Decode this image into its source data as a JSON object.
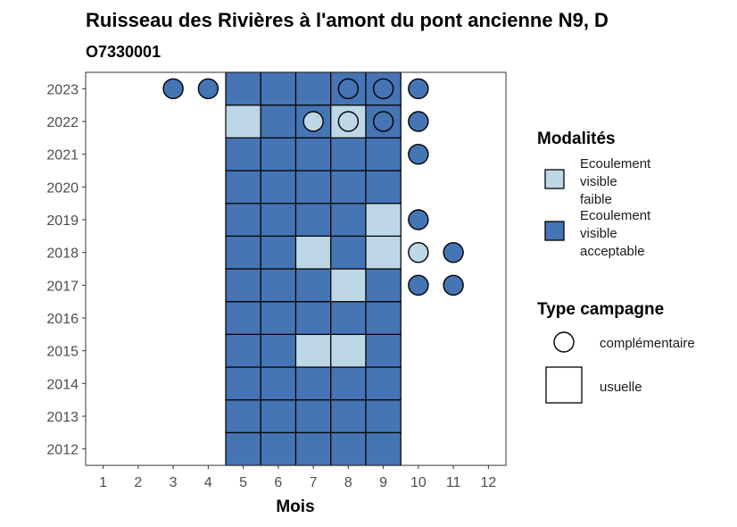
{
  "chart_data": {
    "type": "heatmap",
    "title": "Ruisseau des Rivières à l'amont du pont ancienne N9, D",
    "subtitle": "O7330001",
    "xlabel": "Mois",
    "ylabel": "",
    "x_ticks": [
      "1",
      "2",
      "3",
      "4",
      "5",
      "6",
      "7",
      "8",
      "9",
      "10",
      "11",
      "12"
    ],
    "y_ticks": [
      "2012",
      "2013",
      "2014",
      "2015",
      "2016",
      "2017",
      "2018",
      "2019",
      "2020",
      "2021",
      "2022",
      "2023"
    ],
    "xlim": [
      0.5,
      12.5
    ],
    "ylim": [
      2011.5,
      2023.5
    ],
    "grid": false,
    "colors": {
      "Ecoulement visible faible": "#bdd7e7",
      "Ecoulement visible acceptable": "#4575b4",
      "none": "#ffffff",
      "outline": "#000000"
    },
    "legend": {
      "placement": "right",
      "modalites": {
        "title": "Modalités",
        "items": [
          {
            "key": "Ecoulement visible faible",
            "lines": [
              "Ecoulement",
              "visible",
              "faible"
            ]
          },
          {
            "key": "Ecoulement visible acceptable",
            "lines": [
              "Ecoulement",
              "visible",
              "acceptable"
            ]
          }
        ]
      },
      "campagne": {
        "title": "Type campagne",
        "items": [
          {
            "key": "complémentaire",
            "label": "complémentaire",
            "shape": "circle"
          },
          {
            "key": "usuelle",
            "label": "usuelle",
            "shape": "square"
          }
        ]
      }
    },
    "observations": [
      {
        "year": 2012,
        "month": 5,
        "modalite": "Ecoulement visible acceptable",
        "campagne": "usuelle"
      },
      {
        "year": 2012,
        "month": 6,
        "modalite": "Ecoulement visible acceptable",
        "campagne": "usuelle"
      },
      {
        "year": 2012,
        "month": 7,
        "modalite": "Ecoulement visible acceptable",
        "campagne": "usuelle"
      },
      {
        "year": 2012,
        "month": 8,
        "modalite": "Ecoulement visible acceptable",
        "campagne": "usuelle"
      },
      {
        "year": 2012,
        "month": 9,
        "modalite": "Ecoulement visible acceptable",
        "campagne": "usuelle"
      },
      {
        "year": 2013,
        "month": 5,
        "modalite": "Ecoulement visible acceptable",
        "campagne": "usuelle"
      },
      {
        "year": 2013,
        "month": 6,
        "modalite": "Ecoulement visible acceptable",
        "campagne": "usuelle"
      },
      {
        "year": 2013,
        "month": 7,
        "modalite": "Ecoulement visible acceptable",
        "campagne": "usuelle"
      },
      {
        "year": 2013,
        "month": 8,
        "modalite": "Ecoulement visible acceptable",
        "campagne": "usuelle"
      },
      {
        "year": 2013,
        "month": 9,
        "modalite": "Ecoulement visible acceptable",
        "campagne": "usuelle"
      },
      {
        "year": 2014,
        "month": 5,
        "modalite": "Ecoulement visible acceptable",
        "campagne": "usuelle"
      },
      {
        "year": 2014,
        "month": 6,
        "modalite": "Ecoulement visible acceptable",
        "campagne": "usuelle"
      },
      {
        "year": 2014,
        "month": 7,
        "modalite": "Ecoulement visible acceptable",
        "campagne": "usuelle"
      },
      {
        "year": 2014,
        "month": 8,
        "modalite": "Ecoulement visible acceptable",
        "campagne": "usuelle"
      },
      {
        "year": 2014,
        "month": 9,
        "modalite": "Ecoulement visible acceptable",
        "campagne": "usuelle"
      },
      {
        "year": 2015,
        "month": 5,
        "modalite": "Ecoulement visible acceptable",
        "campagne": "usuelle"
      },
      {
        "year": 2015,
        "month": 6,
        "modalite": "Ecoulement visible acceptable",
        "campagne": "usuelle"
      },
      {
        "year": 2015,
        "month": 7,
        "modalite": "Ecoulement visible faible",
        "campagne": "usuelle"
      },
      {
        "year": 2015,
        "month": 8,
        "modalite": "Ecoulement visible faible",
        "campagne": "usuelle"
      },
      {
        "year": 2015,
        "month": 9,
        "modalite": "Ecoulement visible acceptable",
        "campagne": "usuelle"
      },
      {
        "year": 2016,
        "month": 5,
        "modalite": "Ecoulement visible acceptable",
        "campagne": "usuelle"
      },
      {
        "year": 2016,
        "month": 6,
        "modalite": "Ecoulement visible acceptable",
        "campagne": "usuelle"
      },
      {
        "year": 2016,
        "month": 7,
        "modalite": "Ecoulement visible acceptable",
        "campagne": "usuelle"
      },
      {
        "year": 2016,
        "month": 8,
        "modalite": "Ecoulement visible acceptable",
        "campagne": "usuelle"
      },
      {
        "year": 2016,
        "month": 9,
        "modalite": "Ecoulement visible acceptable",
        "campagne": "usuelle"
      },
      {
        "year": 2017,
        "month": 5,
        "modalite": "Ecoulement visible acceptable",
        "campagne": "usuelle"
      },
      {
        "year": 2017,
        "month": 6,
        "modalite": "Ecoulement visible acceptable",
        "campagne": "usuelle"
      },
      {
        "year": 2017,
        "month": 7,
        "modalite": "Ecoulement visible acceptable",
        "campagne": "usuelle"
      },
      {
        "year": 2017,
        "month": 8,
        "modalite": "Ecoulement visible faible",
        "campagne": "usuelle"
      },
      {
        "year": 2017,
        "month": 9,
        "modalite": "Ecoulement visible acceptable",
        "campagne": "usuelle"
      },
      {
        "year": 2017,
        "month": 10,
        "modalite": "Ecoulement visible acceptable",
        "campagne": "complémentaire"
      },
      {
        "year": 2017,
        "month": 11,
        "modalite": "Ecoulement visible acceptable",
        "campagne": "complémentaire"
      },
      {
        "year": 2018,
        "month": 5,
        "modalite": "Ecoulement visible acceptable",
        "campagne": "usuelle"
      },
      {
        "year": 2018,
        "month": 6,
        "modalite": "Ecoulement visible acceptable",
        "campagne": "usuelle"
      },
      {
        "year": 2018,
        "month": 7,
        "modalite": "Ecoulement visible faible",
        "campagne": "usuelle"
      },
      {
        "year": 2018,
        "month": 8,
        "modalite": "Ecoulement visible acceptable",
        "campagne": "usuelle"
      },
      {
        "year": 2018,
        "month": 9,
        "modalite": "Ecoulement visible faible",
        "campagne": "usuelle"
      },
      {
        "year": 2018,
        "month": 10,
        "modalite": "Ecoulement visible faible",
        "campagne": "complémentaire"
      },
      {
        "year": 2018,
        "month": 11,
        "modalite": "Ecoulement visible acceptable",
        "campagne": "complémentaire"
      },
      {
        "year": 2019,
        "month": 5,
        "modalite": "Ecoulement visible acceptable",
        "campagne": "usuelle"
      },
      {
        "year": 2019,
        "month": 6,
        "modalite": "Ecoulement visible acceptable",
        "campagne": "usuelle"
      },
      {
        "year": 2019,
        "month": 7,
        "modalite": "Ecoulement visible acceptable",
        "campagne": "usuelle"
      },
      {
        "year": 2019,
        "month": 8,
        "modalite": "Ecoulement visible acceptable",
        "campagne": "usuelle"
      },
      {
        "year": 2019,
        "month": 9,
        "modalite": "Ecoulement visible faible",
        "campagne": "usuelle"
      },
      {
        "year": 2019,
        "month": 10,
        "modalite": "Ecoulement visible acceptable",
        "campagne": "complémentaire"
      },
      {
        "year": 2020,
        "month": 5,
        "modalite": "Ecoulement visible acceptable",
        "campagne": "usuelle"
      },
      {
        "year": 2020,
        "month": 6,
        "modalite": "Ecoulement visible acceptable",
        "campagne": "usuelle"
      },
      {
        "year": 2020,
        "month": 7,
        "modalite": "Ecoulement visible acceptable",
        "campagne": "usuelle"
      },
      {
        "year": 2020,
        "month": 8,
        "modalite": "Ecoulement visible acceptable",
        "campagne": "usuelle"
      },
      {
        "year": 2020,
        "month": 9,
        "modalite": "Ecoulement visible acceptable",
        "campagne": "usuelle"
      },
      {
        "year": 2021,
        "month": 5,
        "modalite": "Ecoulement visible acceptable",
        "campagne": "usuelle"
      },
      {
        "year": 2021,
        "month": 6,
        "modalite": "Ecoulement visible acceptable",
        "campagne": "usuelle"
      },
      {
        "year": 2021,
        "month": 7,
        "modalite": "Ecoulement visible acceptable",
        "campagne": "usuelle"
      },
      {
        "year": 2021,
        "month": 8,
        "modalite": "Ecoulement visible acceptable",
        "campagne": "usuelle"
      },
      {
        "year": 2021,
        "month": 9,
        "modalite": "Ecoulement visible acceptable",
        "campagne": "usuelle"
      },
      {
        "year": 2021,
        "month": 10,
        "modalite": "Ecoulement visible acceptable",
        "campagne": "complémentaire"
      },
      {
        "year": 2022,
        "month": 5,
        "modalite": "Ecoulement visible faible",
        "campagne": "usuelle"
      },
      {
        "year": 2022,
        "month": 6,
        "modalite": "Ecoulement visible acceptable",
        "campagne": "usuelle"
      },
      {
        "year": 2022,
        "month": 7,
        "modalite": "Ecoulement visible acceptable",
        "campagne": "usuelle"
      },
      {
        "year": 2022,
        "month": 7,
        "modalite": "Ecoulement visible faible",
        "campagne": "complémentaire"
      },
      {
        "year": 2022,
        "month": 8,
        "modalite": "Ecoulement visible faible",
        "campagne": "usuelle"
      },
      {
        "year": 2022,
        "month": 8,
        "modalite": "Ecoulement visible faible",
        "campagne": "complémentaire"
      },
      {
        "year": 2022,
        "month": 9,
        "modalite": "Ecoulement visible acceptable",
        "campagne": "usuelle"
      },
      {
        "year": 2022,
        "month": 9,
        "modalite": "Ecoulement visible acceptable",
        "campagne": "complémentaire"
      },
      {
        "year": 2022,
        "month": 10,
        "modalite": "Ecoulement visible acceptable",
        "campagne": "complémentaire"
      },
      {
        "year": 2023,
        "month": 3,
        "modalite": "Ecoulement visible acceptable",
        "campagne": "complémentaire"
      },
      {
        "year": 2023,
        "month": 4,
        "modalite": "Ecoulement visible acceptable",
        "campagne": "complémentaire"
      },
      {
        "year": 2023,
        "month": 5,
        "modalite": "Ecoulement visible acceptable",
        "campagne": "usuelle"
      },
      {
        "year": 2023,
        "month": 6,
        "modalite": "Ecoulement visible acceptable",
        "campagne": "usuelle"
      },
      {
        "year": 2023,
        "month": 7,
        "modalite": "Ecoulement visible acceptable",
        "campagne": "usuelle"
      },
      {
        "year": 2023,
        "month": 8,
        "modalite": "Ecoulement visible acceptable",
        "campagne": "usuelle"
      },
      {
        "year": 2023,
        "month": 8,
        "modalite": "Ecoulement visible acceptable",
        "campagne": "complémentaire"
      },
      {
        "year": 2023,
        "month": 9,
        "modalite": "Ecoulement visible acceptable",
        "campagne": "usuelle"
      },
      {
        "year": 2023,
        "month": 9,
        "modalite": "Ecoulement visible acceptable",
        "campagne": "complémentaire"
      },
      {
        "year": 2023,
        "month": 10,
        "modalite": "Ecoulement visible acceptable",
        "campagne": "complémentaire"
      }
    ]
  }
}
